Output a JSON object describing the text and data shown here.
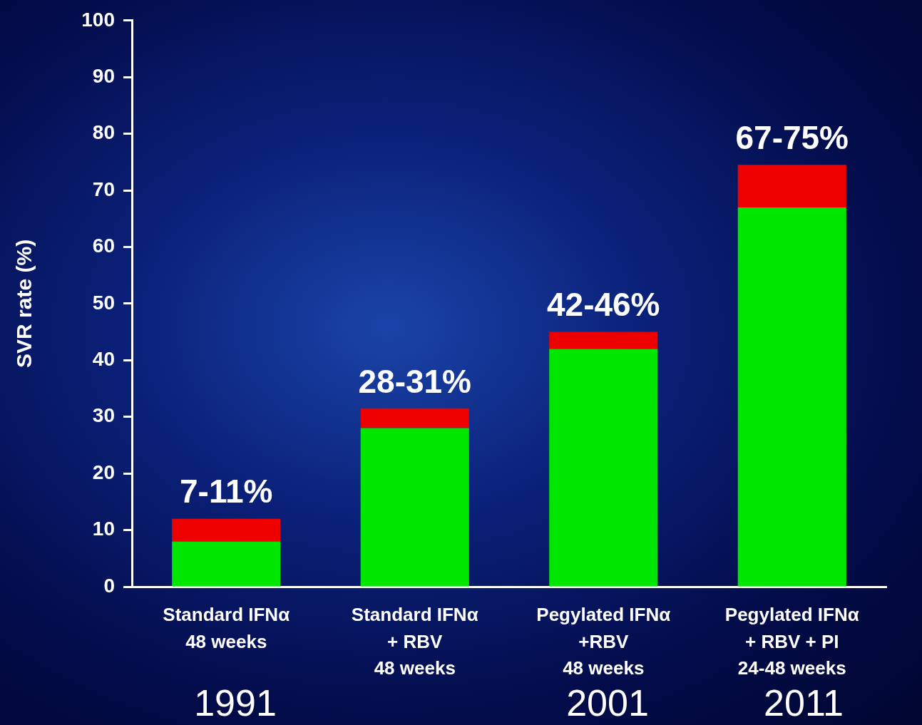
{
  "chart_data": {
    "type": "bar",
    "stacked": true,
    "ylabel": "SVR rate (%)",
    "categories": [
      "Standard IFNα\n48 weeks",
      "Standard IFNα\n+ RBV\n48 weeks",
      "Pegylated IFNα\n+RBV\n48 weeks",
      "Pegylated IFNα\n+ RBV + PI\n24-48 weeks"
    ],
    "series": [
      {
        "color": "#00e600",
        "values": [
          8,
          28,
          42,
          67
        ]
      },
      {
        "color": "#ee0000",
        "values": [
          4,
          3.5,
          3,
          7.5
        ]
      }
    ],
    "ylim": [
      0,
      100
    ],
    "yticks": [
      0,
      10,
      20,
      30,
      40,
      50,
      60,
      70,
      80,
      90,
      100
    ],
    "grid": false,
    "legend": false,
    "totals": [
      "7-11%",
      "28-31%",
      "42-46%",
      "67-75%"
    ],
    "annotations": [
      "1991",
      "2001",
      "2011"
    ]
  }
}
